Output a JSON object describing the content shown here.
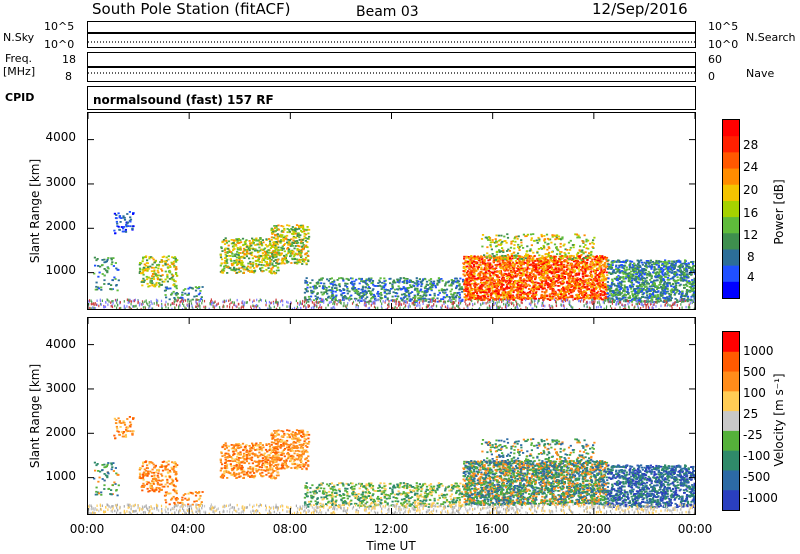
{
  "header": {
    "title": "South Pole Station (fitACF)",
    "beam": "Beam 03",
    "date": "12/Sep/2016"
  },
  "top_strips": {
    "nsky_label": "N.Sky",
    "nsky_ticks": [
      "10^5",
      "10^0"
    ],
    "nsearch_label": "N.Search",
    "nsearch_ticks": [
      "10^5",
      "10^0"
    ],
    "freq_label": "Freq.",
    "freq_unit": "[MHz]",
    "freq_ticks": [
      "18",
      "8"
    ],
    "nave_label": "Nave",
    "nave_ticks": [
      "60",
      "0"
    ],
    "cpid_label": "CPID",
    "cpid_value": "normalsound (fast) 157 RF"
  },
  "chart_data": [
    {
      "type": "heatmap",
      "name": "power",
      "ylabel": "Slant Range [km]",
      "xlabel": "",
      "ylim": [
        180,
        4600
      ],
      "xlim_hours": [
        0,
        24
      ],
      "y_ticks": [
        "1000",
        "2000",
        "3000",
        "4000"
      ],
      "colorbar": {
        "label": "Power [dB]",
        "ticks": [
          "28",
          "24",
          "20",
          "16",
          "12",
          "8",
          "4"
        ],
        "colors": [
          "#0000ff",
          "#2050ff",
          "#2c6e98",
          "#3e8f4e",
          "#5fbb3b",
          "#a6d200",
          "#f4c400",
          "#ff8c00",
          "#ff5800",
          "#ff2000",
          "#ff0000"
        ]
      }
    },
    {
      "type": "heatmap",
      "name": "velocity",
      "ylabel": "Slant Range [km]",
      "xlabel": "Time UT",
      "ylim": [
        180,
        4600
      ],
      "xlim_hours": [
        0,
        24
      ],
      "y_ticks": [
        "1000",
        "2000",
        "3000",
        "4000"
      ],
      "x_ticks": [
        "00:00",
        "04:00",
        "08:00",
        "12:00",
        "16:00",
        "20:00",
        "00:00"
      ],
      "colorbar": {
        "label": "Velocity [m s⁻¹]",
        "ticks": [
          "1000",
          "500",
          "100",
          "25",
          "-25",
          "-100",
          "-500",
          "-1000"
        ],
        "colors": [
          "#2a3fbf",
          "#2c6aa5",
          "#2f8a6a",
          "#55b13a",
          "#c8c8c8",
          "#ffcc55",
          "#ff8c1a",
          "#ff5a00",
          "#ff0000"
        ]
      }
    }
  ]
}
